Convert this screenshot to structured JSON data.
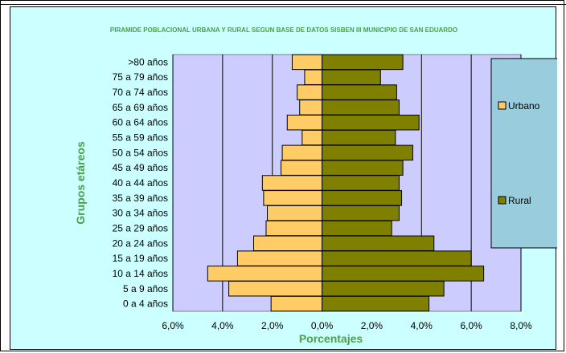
{
  "chart_data": {
    "type": "bar",
    "orientation": "horizontal-pyramid",
    "title": "PIRAMIDE POBLACIONAL URBANA Y RURAL SEGUN BASE DE DATOS SISBEN  III  MUNICIPIO DE SAN  EDUARDO",
    "xlabel": "Porcentajes",
    "ylabel": "Grupos etáreos",
    "categories": [
      ">80 años",
      "75 a 79 años",
      "70 a 74 años",
      "65 a 69 años",
      "60 a 64 años",
      "55 a 59 años",
      "50 a 54 años",
      "45 a 49 años",
      "40 a 44 años",
      "35 a 39 años",
      "30 a 34 años",
      "25 a 29 años",
      "20 a 24 años",
      "15 a 19 años",
      "10 a 14 años",
      "5 a 9 años",
      "0 a 4 años"
    ],
    "series": [
      {
        "name": "Urbano",
        "color": "#ffcc66",
        "values": [
          1.2,
          0.7,
          1.0,
          0.9,
          1.4,
          0.8,
          1.6,
          1.65,
          2.4,
          2.35,
          2.2,
          2.25,
          2.75,
          3.4,
          4.6,
          3.75,
          2.05
        ]
      },
      {
        "name": "Rural",
        "color": "#808000",
        "values": [
          3.25,
          2.35,
          3.0,
          3.1,
          3.9,
          2.95,
          3.65,
          3.25,
          3.1,
          3.2,
          3.1,
          2.8,
          4.5,
          6.0,
          6.5,
          4.9,
          4.3
        ]
      }
    ],
    "xticks": [
      "6,0%",
      "4,0%",
      "2,0%",
      "0,0%",
      "2,0%",
      "4,0%",
      "6,0%",
      "8,0%"
    ],
    "xlim": [
      -6,
      8
    ],
    "grid": true,
    "legend": "right"
  }
}
